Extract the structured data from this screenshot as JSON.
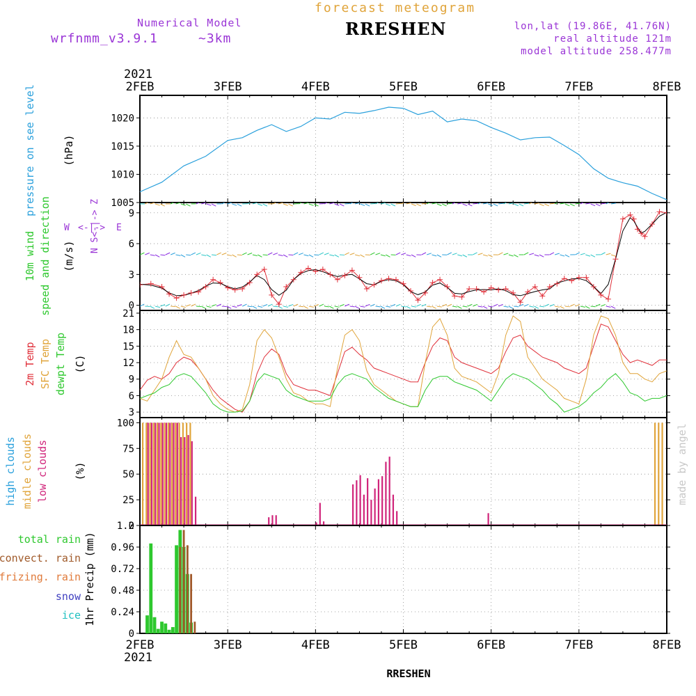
{
  "header": {
    "model_label": "Numerical Model",
    "model_name": "wrfnmm_v3.9.1",
    "model_res": "~3km",
    "product": "forecast meteogram",
    "station": "RRESHEN",
    "lonlat": "lon,lat (19.86E, 41.76N)",
    "real_alt": "real altitude 121m",
    "model_alt": "model altitude  258.477m",
    "year": "2021",
    "footer_station": "RRESHEN",
    "credit": "made by angel"
  },
  "colors": {
    "pressure": "#2aa0dc",
    "wind_speed": "#e0303a",
    "wind_smooth": "#000000",
    "temp2m": "#e0303a",
    "sfc_temp": "#e0a43a",
    "dewpt": "#2ec82e",
    "high_clouds": "#2aa0dc",
    "middle_clouds": "#e0a43a",
    "low_clouds": "#d0247a",
    "total_rain": "#2ec82e",
    "convect_rain": "#a05a2a",
    "frizing_rain": "#e07a3a",
    "snow": "#4040c0",
    "ice": "#20c0c0",
    "axis_label_purple": "#9a35d6"
  },
  "x_axis": {
    "days": [
      "2FEB",
      "3FEB",
      "4FEB",
      "5FEB",
      "6FEB",
      "7FEB",
      "8FEB"
    ],
    "hours": 144
  },
  "chart_data": [
    {
      "type": "line",
      "name": "pressure",
      "ylabel": [
        "pressure on see level",
        "(hPa)"
      ],
      "ylim": [
        1005,
        1024
      ],
      "yticks": [
        1005,
        1010,
        1015,
        1020
      ],
      "x": [
        0,
        6,
        12,
        18,
        24,
        28,
        32,
        36,
        40,
        44,
        48,
        52,
        56,
        60,
        64,
        68,
        72,
        76,
        80,
        84,
        88,
        92,
        96,
        100,
        104,
        108,
        112,
        116,
        120,
        124,
        128,
        132,
        136,
        140,
        144
      ],
      "values": [
        1006.9,
        1008.6,
        1011.5,
        1013.2,
        1016.0,
        1016.5,
        1017.8,
        1018.8,
        1017.6,
        1018.5,
        1020.0,
        1019.8,
        1021.0,
        1020.8,
        1021.3,
        1021.9,
        1021.7,
        1020.6,
        1021.2,
        1019.3,
        1019.8,
        1019.5,
        1018.3,
        1017.3,
        1016.1,
        1016.5,
        1016.6,
        1015.1,
        1013.5,
        1011.0,
        1009.3,
        1008.5,
        1007.9,
        1006.6,
        1005.5
      ]
    },
    {
      "type": "line",
      "name": "wind",
      "ylabel": [
        "10m wind",
        "speed and direction",
        "(m/s)"
      ],
      "compass": [
        "W",
        "<-|->",
        "E",
        "N",
        "S<-|->",
        "Z"
      ],
      "ylim": [
        -0.5,
        10
      ],
      "yticks": [
        0,
        3,
        6,
        9
      ],
      "x": [
        0,
        3,
        6,
        8,
        10,
        12,
        14,
        16,
        18,
        20,
        22,
        24,
        26,
        28,
        30,
        32,
        34,
        36,
        38,
        40,
        42,
        44,
        46,
        48,
        50,
        52,
        54,
        56,
        58,
        60,
        62,
        64,
        66,
        68,
        70,
        72,
        74,
        76,
        78,
        80,
        82,
        84,
        86,
        88,
        90,
        92,
        94,
        96,
        98,
        100,
        102,
        104,
        106,
        108,
        110,
        112,
        114,
        116,
        118,
        120,
        122,
        124,
        126,
        128,
        130,
        132,
        134,
        135,
        136,
        137,
        138,
        140,
        142,
        144
      ],
      "values": [
        2.0,
        2.1,
        1.8,
        1.1,
        0.7,
        1.0,
        1.2,
        1.3,
        1.8,
        2.5,
        2.2,
        1.7,
        1.5,
        1.6,
        2.2,
        3.0,
        3.5,
        1.0,
        0.1,
        1.8,
        2.5,
        3.2,
        3.6,
        3.3,
        3.5,
        3.0,
        2.5,
        2.9,
        3.4,
        2.7,
        1.6,
        2.0,
        2.4,
        2.6,
        2.5,
        2.1,
        1.4,
        0.5,
        1.2,
        2.2,
        2.5,
        1.8,
        0.9,
        0.8,
        1.6,
        1.6,
        1.3,
        1.7,
        1.5,
        1.6,
        1.2,
        0.3,
        1.3,
        1.8,
        0.9,
        1.8,
        2.1,
        2.6,
        2.4,
        2.7,
        2.7,
        1.8,
        1.0,
        0.6,
        4.5,
        8.4,
        8.8,
        8.4,
        7.4,
        7.0,
        6.7,
        7.9,
        9.1,
        9.0
      ]
    },
    {
      "type": "line",
      "name": "temperature",
      "ylabel": [
        "2m Temp",
        "SFC Temp",
        "dewpt Temp",
        "(C)"
      ],
      "ylim": [
        2,
        21.5
      ],
      "yticks": [
        3,
        6,
        9,
        12,
        15,
        18,
        21
      ],
      "series": [
        {
          "name": "2m Temp",
          "x": [
            0,
            2,
            4,
            6,
            8,
            10,
            12,
            14,
            16,
            18,
            20,
            22,
            24,
            26,
            28,
            30,
            32,
            34,
            36,
            38,
            40,
            42,
            44,
            46,
            48,
            50,
            52,
            54,
            56,
            58,
            60,
            62,
            64,
            66,
            68,
            70,
            72,
            74,
            76,
            78,
            80,
            82,
            84,
            86,
            88,
            90,
            92,
            94,
            96,
            98,
            100,
            102,
            104,
            106,
            108,
            110,
            112,
            114,
            116,
            118,
            120,
            122,
            124,
            126,
            128,
            130,
            132,
            134,
            136,
            138,
            140,
            142,
            144
          ],
          "values": [
            7.0,
            8.8,
            9.5,
            9.0,
            10.0,
            12.0,
            13.0,
            12.5,
            11.0,
            9.0,
            7.0,
            5.5,
            4.5,
            3.5,
            3.0,
            5.0,
            10.0,
            13.0,
            14.5,
            13.5,
            10.0,
            8.0,
            7.5,
            7.0,
            7.0,
            6.5,
            6.0,
            10.0,
            14.0,
            14.8,
            13.5,
            12.5,
            11.0,
            10.5,
            10.0,
            9.5,
            9.0,
            8.5,
            8.5,
            12.0,
            15.0,
            16.5,
            16.0,
            13.0,
            12.0,
            11.5,
            11.0,
            10.5,
            10.0,
            11.0,
            14.0,
            16.5,
            17.0,
            15.0,
            14.0,
            13.0,
            12.5,
            12.0,
            11.0,
            10.5,
            10.0,
            11.0,
            15.0,
            19.0,
            18.5,
            16.0,
            13.5,
            12.0,
            12.5,
            12.0,
            11.5,
            12.5,
            12.5
          ]
        },
        {
          "name": "SFC Temp",
          "x": [
            0,
            2,
            4,
            6,
            8,
            10,
            12,
            14,
            16,
            18,
            20,
            22,
            24,
            26,
            28,
            30,
            32,
            34,
            36,
            38,
            40,
            42,
            44,
            46,
            48,
            50,
            52,
            54,
            56,
            58,
            60,
            62,
            64,
            66,
            68,
            70,
            72,
            74,
            76,
            78,
            80,
            82,
            84,
            86,
            88,
            90,
            92,
            94,
            96,
            98,
            100,
            102,
            104,
            106,
            108,
            110,
            112,
            114,
            116,
            118,
            120,
            122,
            124,
            126,
            128,
            130,
            132,
            134,
            136,
            138,
            140,
            142,
            144
          ],
          "values": [
            5.5,
            5.0,
            7.0,
            9.0,
            13.0,
            16.0,
            13.5,
            13.0,
            11.0,
            9.0,
            6.0,
            4.5,
            3.5,
            3.0,
            3.5,
            8.0,
            16.0,
            18.0,
            16.5,
            13.0,
            9.0,
            6.5,
            6.0,
            5.0,
            4.5,
            4.5,
            4.0,
            11.0,
            17.0,
            18.0,
            16.0,
            10.5,
            8.0,
            7.0,
            6.0,
            5.0,
            4.5,
            4.0,
            4.0,
            12.0,
            18.5,
            20.0,
            17.0,
            11.0,
            9.5,
            9.0,
            8.5,
            7.5,
            6.5,
            10.0,
            17.0,
            20.5,
            19.5,
            13.0,
            11.0,
            9.0,
            8.0,
            7.0,
            5.5,
            5.0,
            4.5,
            9.0,
            17.0,
            20.5,
            20.0,
            17.0,
            12.0,
            10.0,
            10.0,
            9.0,
            8.5,
            10.0,
            10.5
          ]
        },
        {
          "name": "dewpt Temp",
          "x": [
            0,
            2,
            4,
            6,
            8,
            10,
            12,
            14,
            16,
            18,
            20,
            22,
            24,
            26,
            28,
            30,
            32,
            34,
            36,
            38,
            40,
            42,
            44,
            46,
            48,
            50,
            52,
            54,
            56,
            58,
            60,
            62,
            64,
            66,
            68,
            70,
            72,
            74,
            76,
            78,
            80,
            82,
            84,
            86,
            88,
            90,
            92,
            94,
            96,
            98,
            100,
            102,
            104,
            106,
            108,
            110,
            112,
            114,
            116,
            118,
            120,
            122,
            124,
            126,
            128,
            130,
            132,
            134,
            136,
            138,
            140,
            142,
            144
          ],
          "values": [
            5.5,
            6.0,
            6.5,
            7.5,
            8.0,
            9.5,
            10.0,
            9.5,
            8.0,
            6.5,
            4.5,
            3.5,
            3.0,
            3.0,
            3.2,
            5.0,
            8.5,
            10.0,
            9.5,
            9.0,
            7.0,
            6.0,
            5.5,
            5.0,
            5.0,
            5.0,
            5.5,
            8.0,
            9.5,
            10.0,
            9.5,
            9.0,
            7.5,
            6.5,
            5.5,
            5.0,
            4.5,
            4.0,
            4.0,
            7.0,
            9.0,
            9.5,
            9.5,
            8.5,
            8.0,
            7.5,
            7.0,
            6.0,
            5.0,
            7.0,
            9.0,
            10.0,
            9.5,
            9.0,
            8.0,
            7.0,
            5.5,
            4.5,
            3.0,
            3.5,
            4.0,
            5.0,
            6.5,
            7.5,
            9.0,
            10.0,
            8.5,
            6.5,
            6.0,
            5.0,
            5.5,
            5.5,
            6.0
          ]
        }
      ]
    },
    {
      "type": "bar",
      "name": "clouds",
      "ylabel": [
        "high  clouds",
        "midle clouds",
        "low   clouds",
        "(%)"
      ],
      "ylim": [
        0,
        105
      ],
      "yticks": [
        0,
        25,
        50,
        75,
        100
      ],
      "series": [
        {
          "name": "midle clouds",
          "x": [
            1,
            2,
            3,
            4,
            5,
            6,
            7,
            8,
            9,
            10,
            11,
            12,
            13,
            14,
            141,
            142,
            143
          ],
          "values": [
            100,
            100,
            100,
            100,
            100,
            100,
            100,
            100,
            100,
            100,
            100,
            100,
            100,
            100,
            100,
            100,
            100
          ]
        },
        {
          "name": "low   clouds",
          "x": [
            2,
            3,
            4,
            5,
            6,
            7,
            8,
            9,
            10,
            11,
            12,
            13,
            14,
            15,
            35,
            36,
            37,
            48,
            49,
            50,
            58,
            59,
            60,
            61,
            62,
            63,
            64,
            65,
            66,
            67,
            68,
            69,
            70,
            95
          ],
          "values": [
            100,
            100,
            100,
            100,
            100,
            100,
            100,
            100,
            100,
            86,
            86,
            88,
            82,
            28,
            8,
            10,
            10,
            3,
            22,
            4,
            40,
            44,
            49,
            30,
            46,
            25,
            36,
            45,
            48,
            62,
            67,
            30,
            14,
            12
          ]
        }
      ]
    },
    {
      "type": "bar",
      "name": "precip",
      "ylabel": [
        "1hr Precip (mm)"
      ],
      "legend": [
        "total     rain",
        "convect. rain",
        "frizing. rain",
        "snow",
        "ice"
      ],
      "ylim": [
        0,
        1.2
      ],
      "yticks": [
        0,
        0.24,
        0.48,
        0.72,
        0.96,
        1.2
      ],
      "series": [
        {
          "name": "total     rain",
          "x": [
            2,
            3,
            4,
            5,
            6,
            7,
            8,
            9,
            10,
            11,
            12,
            13,
            14,
            15
          ],
          "values": [
            0.2,
            1.0,
            0.18,
            0.05,
            0.13,
            0.11,
            0.04,
            0.07,
            0.98,
            1.15,
            0.96,
            0.66,
            0.12,
            0.0
          ]
        },
        {
          "name": "convect. rain",
          "x": [
            11,
            12,
            13,
            14,
            15
          ],
          "values": [
            0.96,
            1.15,
            0.98,
            0.66,
            0.13
          ]
        }
      ]
    }
  ]
}
